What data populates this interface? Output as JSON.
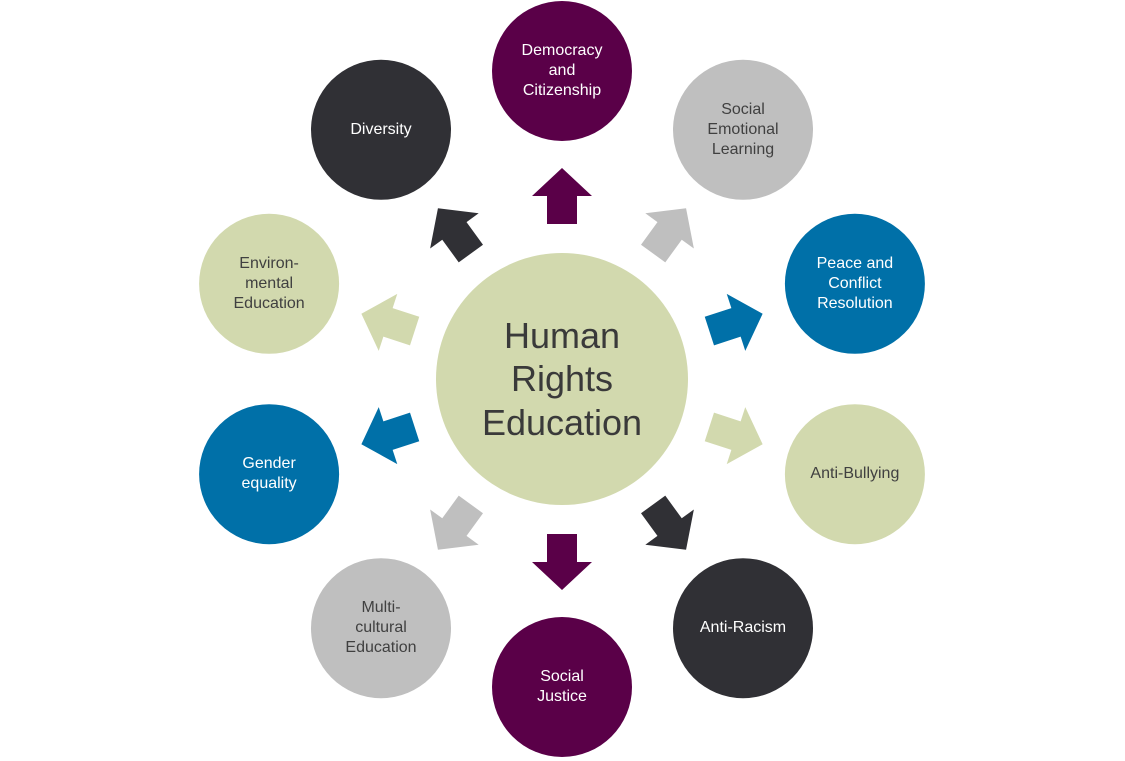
{
  "center": {
    "label": "Human\nRights\nEducation",
    "fill": "#D2D9AE",
    "text_color": "#3A3A3A"
  },
  "topics": [
    {
      "id": "democracy",
      "label": "Democracy\nand\nCitizenship",
      "fill": "#5A0048",
      "text_color": "#FFFFFF"
    },
    {
      "id": "social-emotional",
      "label": "Social\nEmotional\nLearning",
      "fill": "#BFBFBF",
      "text_color": "#404040"
    },
    {
      "id": "peace",
      "label": "Peace and\nConflict\nResolution",
      "fill": "#0070A8",
      "text_color": "#FFFFFF"
    },
    {
      "id": "anti-bullying",
      "label": "Anti-Bullying",
      "fill": "#D2D9AE",
      "text_color": "#404040"
    },
    {
      "id": "anti-racism",
      "label": "Anti-Racism",
      "fill": "#303035",
      "text_color": "#FFFFFF"
    },
    {
      "id": "social-justice",
      "label": "Social\nJustice",
      "fill": "#5A0048",
      "text_color": "#FFFFFF"
    },
    {
      "id": "multicultural",
      "label": "Multi-\ncultural\nEducation",
      "fill": "#BFBFBF",
      "text_color": "#404040"
    },
    {
      "id": "gender",
      "label": "Gender\nequality",
      "fill": "#0070A8",
      "text_color": "#FFFFFF"
    },
    {
      "id": "environmental",
      "label": "Environ-\nmental\nEducation",
      "fill": "#D2D9AE",
      "text_color": "#404040"
    },
    {
      "id": "diversity",
      "label": "Diversity",
      "fill": "#303035",
      "text_color": "#FFFFFF"
    }
  ]
}
